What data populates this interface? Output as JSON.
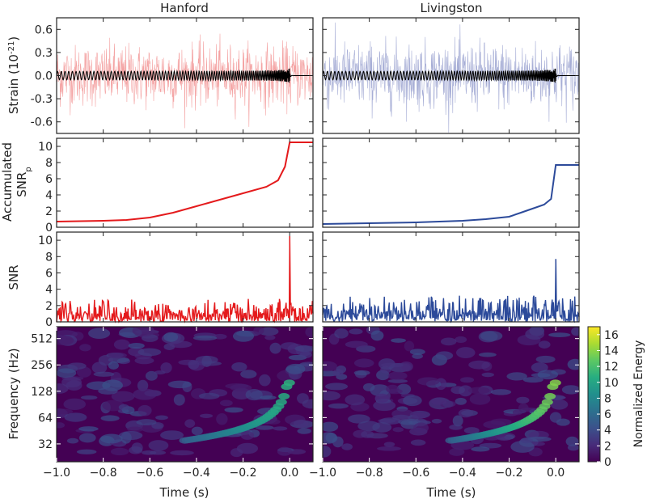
{
  "columns": [
    "Hanford",
    "Livingston"
  ],
  "colors": {
    "hanford": "#e41a1c",
    "hanford_light": "#f4a3a3",
    "livingston": "#2c4a9a",
    "livingston_light": "#a7aed6",
    "template": "#000000"
  },
  "chart_data": [
    {
      "type": "line",
      "panel": "strain",
      "ylabel_main": "Strain (10",
      "ylabel_exp": "-21",
      "ylabel_end": ")",
      "ylim": [
        -0.75,
        0.75
      ],
      "yticks": [
        "0.6",
        "0.3",
        "0.0",
        "-0.3",
        "-0.6"
      ],
      "ytick_values": [
        0.6,
        0.3,
        0.0,
        -0.3,
        -0.6
      ],
      "xlim": [
        -1.0,
        0.1
      ],
      "series": [
        {
          "detector": "Hanford",
          "noise_amplitude": 0.28,
          "template_peak": 0.1
        },
        {
          "detector": "Livingston",
          "noise_amplitude": 0.3,
          "template_peak": 0.1
        }
      ]
    },
    {
      "type": "line",
      "panel": "accumulated_snr",
      "ylabel_line1": "Accumulated",
      "ylabel_line2": "SNR",
      "ylabel_sub": "p",
      "ylim": [
        0,
        11
      ],
      "yticks": [
        "10",
        "8",
        "6",
        "4",
        "2",
        "0"
      ],
      "ytick_values": [
        10,
        8,
        6,
        4,
        2,
        0
      ],
      "xlim": [
        -1.0,
        0.1
      ],
      "series": [
        {
          "detector": "Hanford",
          "x": [
            -1.0,
            -0.8,
            -0.7,
            -0.6,
            -0.5,
            -0.4,
            -0.3,
            -0.2,
            -0.1,
            -0.05,
            -0.02,
            0.0,
            0.1
          ],
          "y": [
            0.7,
            0.8,
            0.9,
            1.2,
            1.8,
            2.6,
            3.4,
            4.2,
            5.0,
            5.8,
            7.5,
            10.5,
            10.5
          ]
        },
        {
          "detector": "Livingston",
          "x": [
            -1.0,
            -0.8,
            -0.6,
            -0.4,
            -0.3,
            -0.2,
            -0.15,
            -0.1,
            -0.05,
            -0.02,
            0.0,
            0.1
          ],
          "y": [
            0.4,
            0.5,
            0.6,
            0.8,
            1.0,
            1.3,
            1.8,
            2.3,
            2.8,
            3.5,
            7.7,
            7.7
          ]
        }
      ]
    },
    {
      "type": "line",
      "panel": "snr",
      "ylabel": "SNR",
      "ylim": [
        0,
        11
      ],
      "yticks": [
        "10",
        "8",
        "6",
        "4",
        "2",
        "0"
      ],
      "ytick_values": [
        10,
        8,
        6,
        4,
        2,
        0
      ],
      "xlim": [
        -1.0,
        0.1
      ],
      "series": [
        {
          "detector": "Hanford",
          "baseline_max": 2.8,
          "peak_x": 0.0,
          "peak_y": 10.5
        },
        {
          "detector": "Livingston",
          "baseline_max": 3.2,
          "peak_x": 0.0,
          "peak_y": 7.7
        }
      ]
    },
    {
      "type": "heatmap",
      "panel": "spectrogram",
      "ylabel": "Frequency (Hz)",
      "xlabel": "Time (s)",
      "yticks": [
        "512",
        "256",
        "128",
        "64",
        "32"
      ],
      "ytick_values": [
        512,
        256,
        128,
        64,
        32
      ],
      "ylim": [
        20,
        700
      ],
      "xlim": [
        -1.0,
        0.1
      ],
      "xticks": [
        "−1.0",
        "−0.8",
        "−0.6",
        "−0.4",
        "−0.2",
        "0.0"
      ],
      "xtick_values": [
        -1.0,
        -0.8,
        -0.6,
        -0.4,
        -0.2,
        0.0
      ],
      "colorbar": {
        "label": "Normalized Energy",
        "range": [
          0,
          17
        ],
        "ticks": [
          "16",
          "14",
          "12",
          "10",
          "8",
          "6",
          "4",
          "2",
          "0"
        ],
        "tick_values": [
          16,
          14,
          12,
          10,
          8,
          6,
          4,
          2,
          0
        ],
        "colormap": [
          "#440154",
          "#472c7a",
          "#3b518b",
          "#2c718e",
          "#21908d",
          "#27ad81",
          "#5cc863",
          "#aadc32",
          "#fde725"
        ]
      }
    }
  ]
}
